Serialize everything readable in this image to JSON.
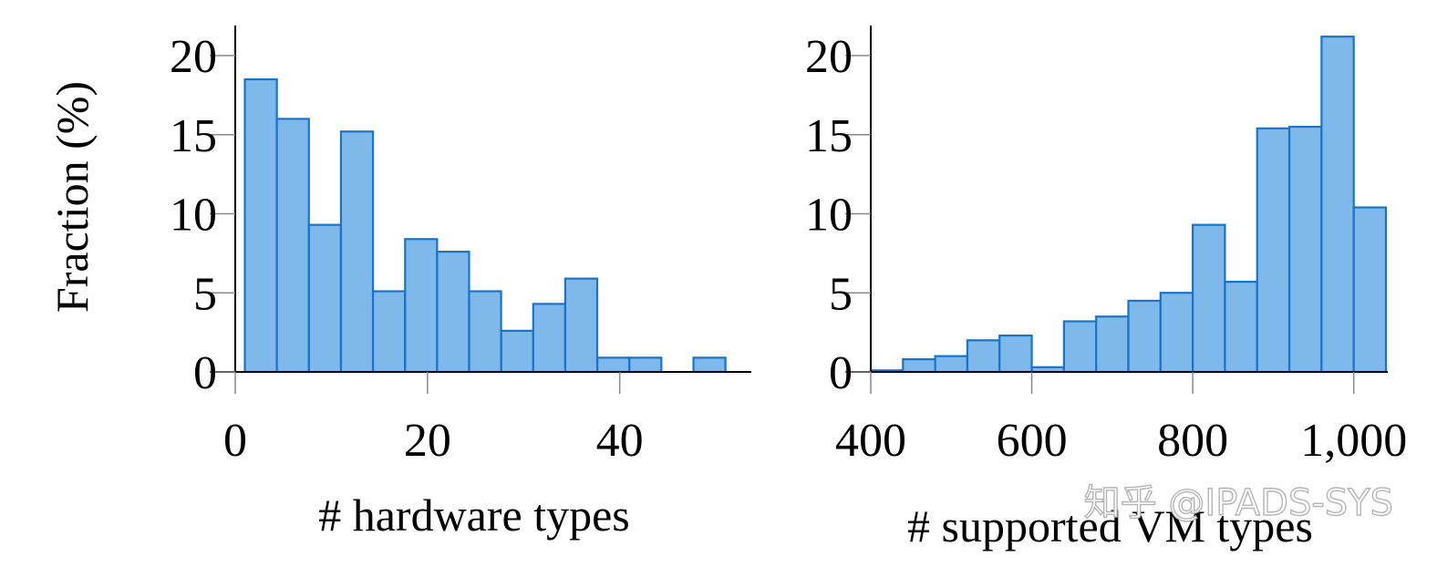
{
  "shared": {
    "ylabel": "Fraction (%)",
    "watermark": "知乎 @IPADS-SYS"
  },
  "chart_data": [
    {
      "type": "bar",
      "xlabel": "# hardware types",
      "ylabel": "Fraction (%)",
      "ylim": [
        0,
        22
      ],
      "yticks": [
        0,
        5,
        10,
        15,
        20
      ],
      "xticks": [
        {
          "value": 0,
          "label": "0"
        },
        {
          "value": 20,
          "label": "20"
        },
        {
          "value": 40,
          "label": "40"
        }
      ],
      "bin_width": 3.33,
      "bins": [
        {
          "x0": 1.0,
          "value": 18.5
        },
        {
          "x0": 4.33,
          "value": 16.0
        },
        {
          "x0": 7.67,
          "value": 9.3
        },
        {
          "x0": 11.0,
          "value": 15.2
        },
        {
          "x0": 14.33,
          "value": 5.1
        },
        {
          "x0": 17.67,
          "value": 8.4
        },
        {
          "x0": 21.0,
          "value": 7.6
        },
        {
          "x0": 24.33,
          "value": 5.1
        },
        {
          "x0": 27.67,
          "value": 2.6
        },
        {
          "x0": 31.0,
          "value": 4.3
        },
        {
          "x0": 34.33,
          "value": 5.9
        },
        {
          "x0": 37.67,
          "value": 0.9
        },
        {
          "x0": 41.0,
          "value": 0.9
        },
        {
          "x0": 44.33,
          "value": 0.0
        },
        {
          "x0": 47.67,
          "value": 0.9
        }
      ],
      "xlim": [
        0,
        53.5
      ],
      "grid": false
    },
    {
      "type": "bar",
      "xlabel": "# supported VM types",
      "ylabel": "",
      "ylim": [
        0,
        22
      ],
      "yticks": [
        0,
        5,
        10,
        15,
        20
      ],
      "xticks": [
        {
          "value": 400,
          "label": "400"
        },
        {
          "value": 600,
          "label": "600"
        },
        {
          "value": 800,
          "label": "800"
        },
        {
          "value": 1000,
          "label": "1,000"
        }
      ],
      "bin_width": 40,
      "bins": [
        {
          "x0": 400,
          "value": 0.1
        },
        {
          "x0": 440,
          "value": 0.8
        },
        {
          "x0": 480,
          "value": 1.0
        },
        {
          "x0": 520,
          "value": 2.0
        },
        {
          "x0": 560,
          "value": 2.3
        },
        {
          "x0": 600,
          "value": 0.3
        },
        {
          "x0": 640,
          "value": 3.2
        },
        {
          "x0": 680,
          "value": 3.5
        },
        {
          "x0": 720,
          "value": 4.5
        },
        {
          "x0": 760,
          "value": 5.0
        },
        {
          "x0": 800,
          "value": 9.3
        },
        {
          "x0": 840,
          "value": 5.7
        },
        {
          "x0": 880,
          "value": 15.4
        },
        {
          "x0": 920,
          "value": 15.5
        },
        {
          "x0": 960,
          "value": 21.2
        },
        {
          "x0": 1000,
          "value": 10.4
        }
      ],
      "xlim": [
        400,
        1040
      ],
      "grid": false
    }
  ]
}
